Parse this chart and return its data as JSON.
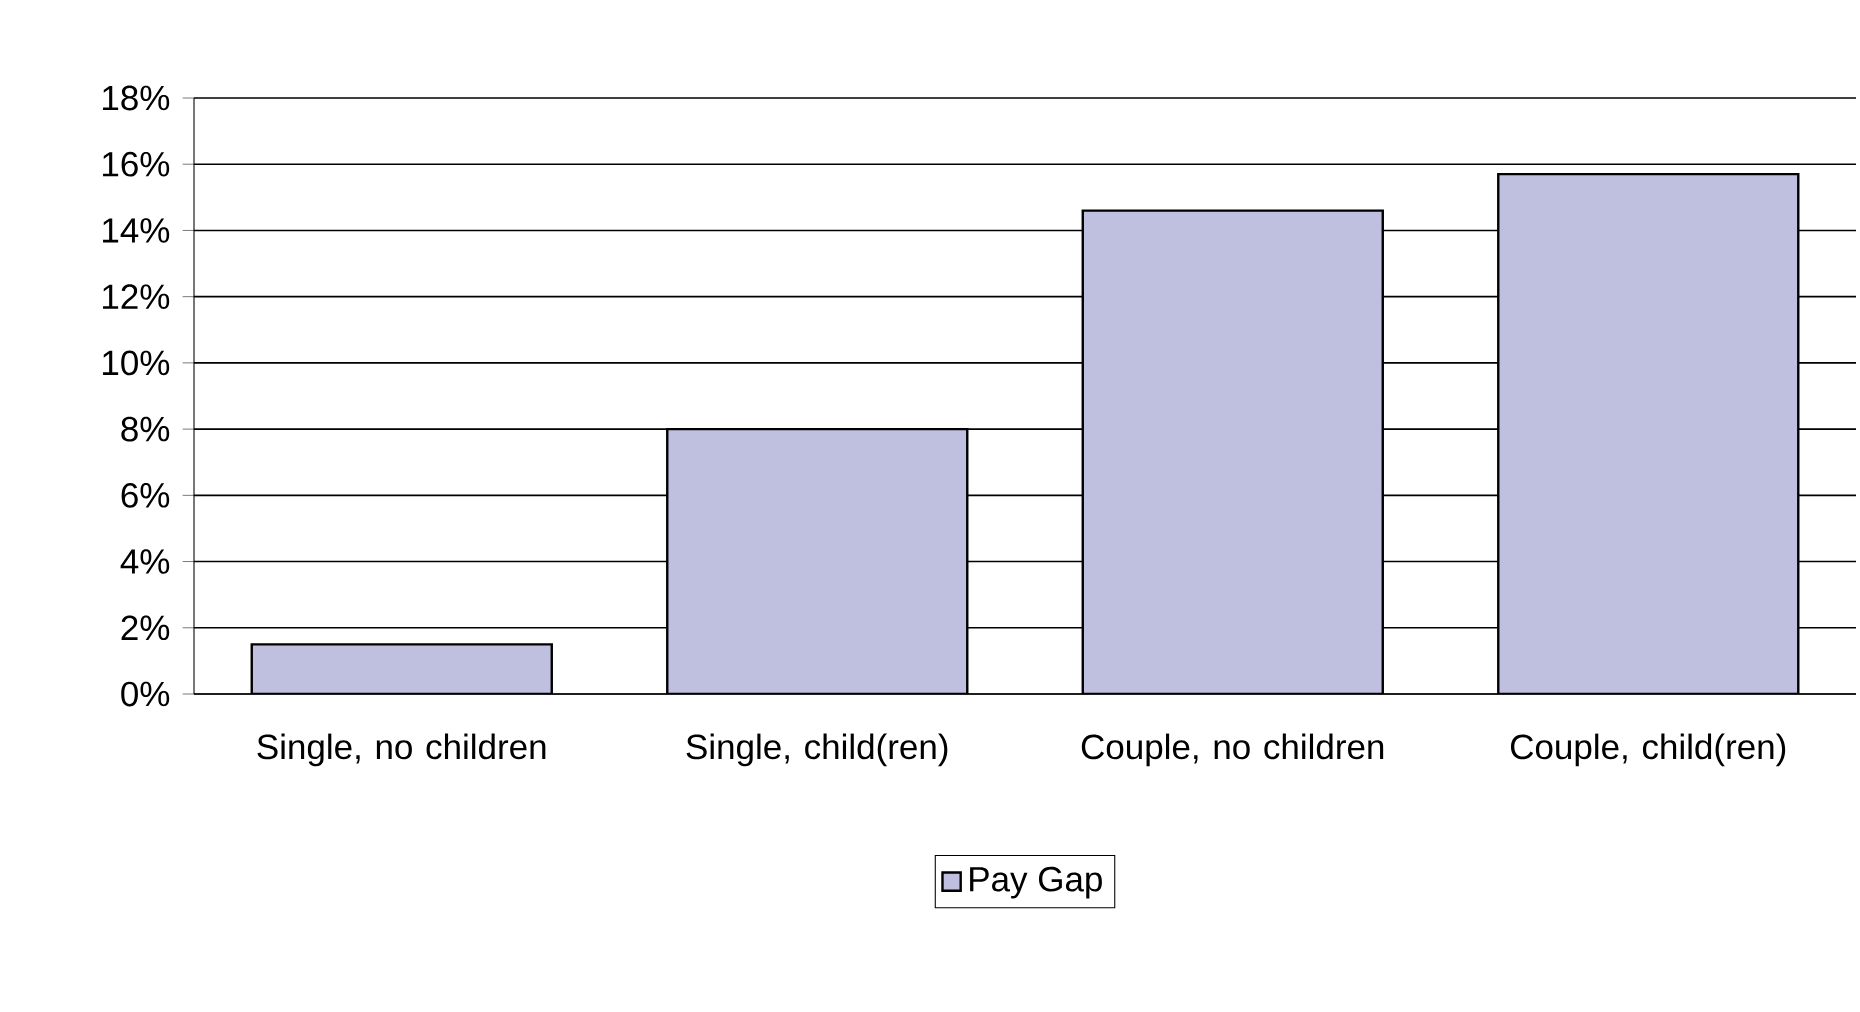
{
  "chart_data": {
    "type": "bar",
    "categories": [
      "Single, no children",
      "Single, child(ren)",
      "Couple, no children",
      "Couple, child(ren)"
    ],
    "series": [
      {
        "name": "Pay Gap",
        "color": "#bfbfdf",
        "values": [
          1.5,
          8.0,
          14.6,
          15.7
        ]
      }
    ],
    "ylim": [
      0,
      18
    ],
    "yticks": [
      {
        "value": 0,
        "label": "0%"
      },
      {
        "value": 2,
        "label": "2%"
      },
      {
        "value": 4,
        "label": "4%"
      },
      {
        "value": 6,
        "label": "6%"
      },
      {
        "value": 8,
        "label": "8%"
      },
      {
        "value": 10,
        "label": "10%"
      },
      {
        "value": 12,
        "label": "12%"
      },
      {
        "value": 14,
        "label": "14%"
      },
      {
        "value": 16,
        "label": "16%"
      },
      {
        "value": 18,
        "label": "18%"
      }
    ],
    "grid": "y",
    "legend": "bottom"
  }
}
